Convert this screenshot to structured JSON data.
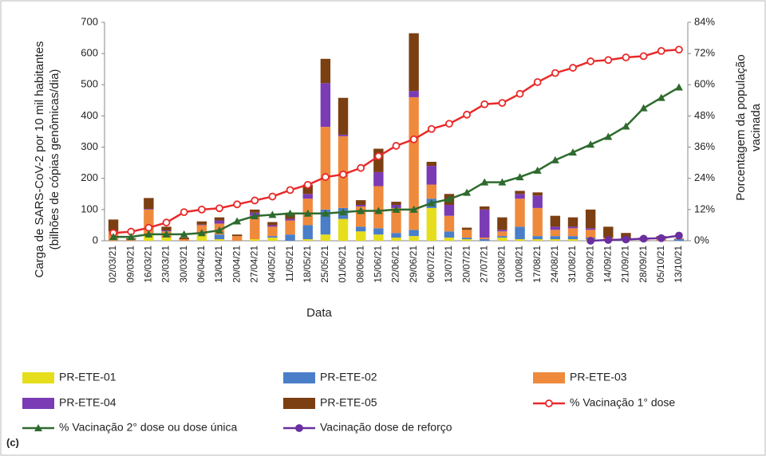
{
  "chart_data": {
    "type": "bar",
    "ylabel": [
      "Carga de SARS-CoV-2 por 10 mil habitantes",
      "(bilhões de cópias genômicas/dia)"
    ],
    "y2label": [
      "Porcentagem da população",
      "vacinada"
    ],
    "xlabel": "Data",
    "panel_label": "(c)",
    "categories": [
      "02/03/21",
      "09/03/21",
      "16/03/21",
      "23/03/21",
      "30/03/21",
      "06/04/21",
      "13/04/21",
      "20/04/21",
      "27/04/21",
      "04/05/21",
      "11/05/21",
      "18/05/21",
      "25/05/21",
      "01/06/21",
      "08/06/21",
      "15/06/21",
      "22/06/21",
      "29/06/21",
      "06/07/21",
      "13/07/21",
      "20/07/21",
      "27/07/21",
      "03/08/21",
      "10/08/21",
      "17/08/21",
      "24/08/21",
      "31/08/21",
      "09/09/21",
      "14/09/21",
      "21/09/21",
      "28/09/21",
      "05/10/21",
      "13/10/21"
    ],
    "ylim": [
      0,
      700
    ],
    "yticks": [
      0,
      100,
      200,
      300,
      400,
      500,
      600,
      700
    ],
    "y2lim": [
      0,
      84
    ],
    "y2ticks": [
      {
        "value": 0,
        "label": "0%"
      },
      {
        "value": 12,
        "label": "12%"
      },
      {
        "value": 24,
        "label": "24%"
      },
      {
        "value": 36,
        "label": "36%"
      },
      {
        "value": 48,
        "label": "48%"
      },
      {
        "value": 60,
        "label": "60%"
      },
      {
        "value": 72,
        "label": "72%"
      },
      {
        "value": 84,
        "label": "84%"
      }
    ],
    "series": [
      {
        "name": "PR-ETE-01",
        "color": "#e6de1c",
        "type": "bar",
        "values": [
          0,
          0,
          20,
          10,
          0,
          20,
          5,
          0,
          5,
          10,
          0,
          5,
          20,
          70,
          30,
          20,
          10,
          15,
          105,
          10,
          5,
          0,
          10,
          5,
          5,
          5,
          5,
          5,
          0,
          0,
          0,
          0,
          0
        ]
      },
      {
        "name": "PR-ETE-02",
        "color": "#4a7ec9",
        "type": "bar",
        "values": [
          0,
          0,
          0,
          0,
          0,
          0,
          15,
          0,
          0,
          5,
          20,
          45,
          80,
          35,
          15,
          20,
          15,
          20,
          30,
          20,
          5,
          5,
          5,
          40,
          10,
          10,
          10,
          5,
          0,
          0,
          0,
          0,
          5
        ]
      },
      {
        "name": "PR-ETE-03",
        "color": "#ef8a3c",
        "type": "bar",
        "values": [
          30,
          5,
          80,
          20,
          5,
          30,
          35,
          15,
          75,
          30,
          45,
          85,
          265,
          230,
          65,
          135,
          80,
          425,
          45,
          50,
          25,
          5,
          15,
          90,
          90,
          20,
          25,
          25,
          10,
          5,
          5,
          10,
          3
        ]
      },
      {
        "name": "PR-ETE-04",
        "color": "#7a3bb5",
        "type": "bar",
        "values": [
          0,
          0,
          2,
          3,
          0,
          2,
          10,
          0,
          10,
          5,
          5,
          15,
          140,
          5,
          5,
          45,
          10,
          20,
          60,
          35,
          0,
          90,
          5,
          15,
          40,
          10,
          5,
          5,
          0,
          0,
          0,
          0,
          0
        ]
      },
      {
        "name": "PR-ETE-05",
        "color": "#7b3f12",
        "type": "bar",
        "values": [
          38,
          3,
          35,
          12,
          5,
          10,
          10,
          5,
          10,
          10,
          20,
          30,
          78,
          118,
          15,
          75,
          10,
          185,
          13,
          35,
          7,
          10,
          40,
          10,
          10,
          35,
          30,
          60,
          35,
          20,
          5,
          5,
          0
        ]
      },
      {
        "name": "% Vacinação 1° dose",
        "color": "#e82a2a",
        "type": "line",
        "axis": "y2",
        "marker": "open-circle",
        "values": [
          3,
          3.5,
          5,
          7,
          11,
          12,
          12.5,
          14,
          15.5,
          17,
          19.5,
          21.5,
          24.5,
          25.5,
          28,
          32.5,
          36.5,
          39,
          43,
          45,
          48.5,
          52.5,
          53,
          56.5,
          61,
          64.5,
          66.5,
          69,
          69.5,
          70.5,
          71,
          73,
          73.5
        ]
      },
      {
        "name": "% Vacinação 2° dose ou dose única",
        "color": "#2e6b2e",
        "type": "line",
        "axis": "y2",
        "marker": "triangle",
        "values": [
          1.5,
          1.5,
          2.5,
          2.5,
          2.5,
          3,
          4,
          7.5,
          9.5,
          10,
          10.5,
          10.5,
          10.5,
          11,
          11.5,
          11.5,
          12,
          12,
          14.5,
          16,
          18.5,
          22.5,
          22.5,
          24.5,
          27,
          31,
          34,
          37,
          40,
          44,
          51,
          55,
          59
        ]
      },
      {
        "name": "Vacinação dose de reforço",
        "color": "#6a2fa0",
        "type": "line",
        "axis": "y2",
        "marker": "circle",
        "values": [
          null,
          null,
          null,
          null,
          null,
          null,
          null,
          null,
          null,
          null,
          null,
          null,
          null,
          null,
          null,
          null,
          null,
          null,
          null,
          null,
          null,
          null,
          null,
          null,
          null,
          null,
          null,
          0,
          0.3,
          0.5,
          0.8,
          1,
          2
        ]
      }
    ]
  }
}
